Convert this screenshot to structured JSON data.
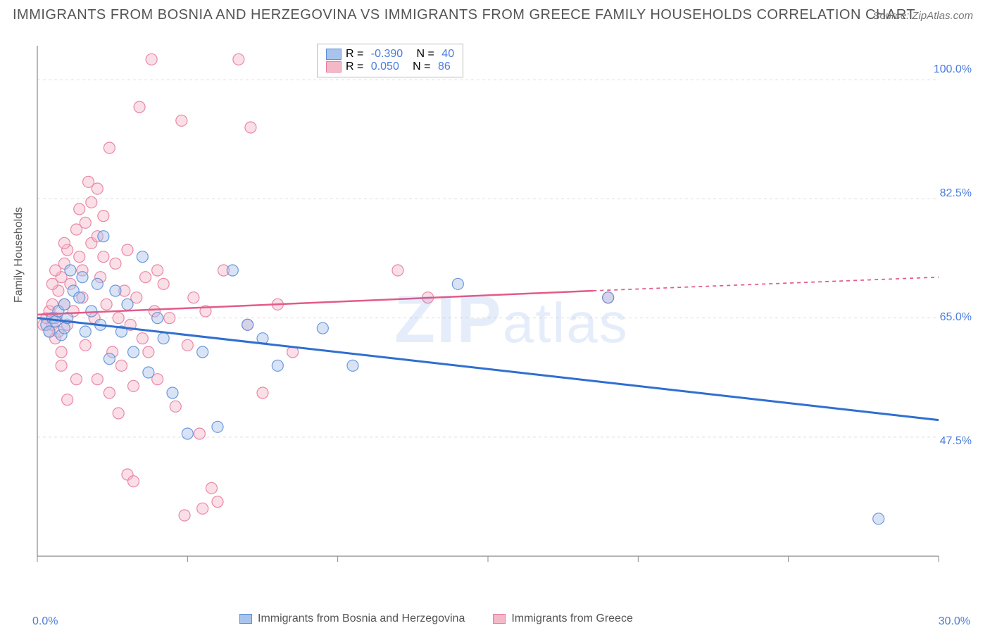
{
  "title": "IMMIGRANTS FROM BOSNIA AND HERZEGOVINA VS IMMIGRANTS FROM GREECE FAMILY HOUSEHOLDS CORRELATION CHART",
  "source": "Source: ZipAtlas.com",
  "ylabel": "Family Households",
  "watermark": "ZIPatlas",
  "chart": {
    "type": "scatter-with-regression",
    "background_color": "#ffffff",
    "grid_color": "#dddddd",
    "axis_color": "#888888",
    "tick_color": "#888888",
    "label_color": "#4a7cdc",
    "xlim": [
      0,
      30
    ],
    "ylim": [
      30,
      105
    ],
    "x_ticks": [
      0,
      5,
      10,
      15,
      20,
      25,
      30
    ],
    "x_tick_labels": {
      "0": "0.0%",
      "30": "30.0%"
    },
    "y_gridlines": [
      47.5,
      65.0,
      82.5,
      100.0
    ],
    "y_tick_labels": [
      "47.5%",
      "65.0%",
      "82.5%",
      "100.0%"
    ],
    "marker_radius": 8,
    "marker_opacity": 0.45,
    "marker_stroke_opacity": 0.9,
    "series": [
      {
        "id": "bosnia",
        "label": "Immigrants from Bosnia and Herzegovina",
        "color_fill": "#a9c4ec",
        "color_stroke": "#5b8fd8",
        "R": "-0.390",
        "N": "40",
        "regression": {
          "x1": 0,
          "y1": 65.0,
          "x2": 30,
          "y2": 50.0,
          "color": "#2f6fd0",
          "width": 3,
          "dash_from_x": 30
        },
        "points": [
          [
            0.3,
            64
          ],
          [
            0.4,
            63
          ],
          [
            0.5,
            65
          ],
          [
            0.6,
            64.5
          ],
          [
            0.7,
            66
          ],
          [
            0.8,
            62.5
          ],
          [
            0.9,
            63.5
          ],
          [
            1.0,
            65
          ],
          [
            1.1,
            72
          ],
          [
            1.2,
            69
          ],
          [
            1.4,
            68
          ],
          [
            1.6,
            63
          ],
          [
            1.8,
            66
          ],
          [
            2.0,
            70
          ],
          [
            2.2,
            77
          ],
          [
            2.4,
            59
          ],
          [
            2.6,
            69
          ],
          [
            2.8,
            63
          ],
          [
            3.0,
            67
          ],
          [
            3.2,
            60
          ],
          [
            3.5,
            74
          ],
          [
            3.7,
            57
          ],
          [
            4.0,
            65
          ],
          [
            4.2,
            62
          ],
          [
            4.5,
            54
          ],
          [
            5,
            48
          ],
          [
            5.5,
            60
          ],
          [
            6,
            49
          ],
          [
            6.5,
            72
          ],
          [
            7,
            64
          ],
          [
            7.5,
            62
          ],
          [
            8,
            58
          ],
          [
            9.5,
            63.5
          ],
          [
            10.5,
            58
          ],
          [
            14,
            70
          ],
          [
            19,
            68
          ],
          [
            28,
            35.5
          ],
          [
            1.5,
            71
          ],
          [
            0.9,
            67
          ],
          [
            2.1,
            64
          ]
        ]
      },
      {
        "id": "greece",
        "label": "Immigrants from Greece",
        "color_fill": "#f4b9c9",
        "color_stroke": "#e87b9e",
        "R": "0.050",
        "N": "86",
        "regression": {
          "x1": 0,
          "y1": 65.5,
          "x2": 18.5,
          "y2": 69.0,
          "x2_dash": 30,
          "y2_dash": 71.0,
          "color": "#e35b88",
          "width": 2.5,
          "dash_from_x": 18.5
        },
        "points": [
          [
            0.2,
            64
          ],
          [
            0.3,
            65
          ],
          [
            0.4,
            63
          ],
          [
            0.4,
            66
          ],
          [
            0.5,
            64
          ],
          [
            0.5,
            67
          ],
          [
            0.6,
            65
          ],
          [
            0.6,
            62
          ],
          [
            0.7,
            69
          ],
          [
            0.7,
            63
          ],
          [
            0.8,
            71
          ],
          [
            0.8,
            60
          ],
          [
            0.9,
            73
          ],
          [
            0.9,
            67
          ],
          [
            1.0,
            75
          ],
          [
            1.0,
            64
          ],
          [
            1.1,
            70
          ],
          [
            1.2,
            66
          ],
          [
            1.3,
            78
          ],
          [
            1.4,
            81
          ],
          [
            1.5,
            72
          ],
          [
            1.5,
            68
          ],
          [
            1.6,
            61
          ],
          [
            1.7,
            85
          ],
          [
            1.8,
            76
          ],
          [
            1.9,
            65
          ],
          [
            2.0,
            84
          ],
          [
            2.0,
            56
          ],
          [
            2.1,
            71
          ],
          [
            2.2,
            80
          ],
          [
            2.3,
            67
          ],
          [
            2.4,
            90
          ],
          [
            2.5,
            60
          ],
          [
            2.6,
            73
          ],
          [
            2.7,
            65
          ],
          [
            2.8,
            58
          ],
          [
            2.9,
            69
          ],
          [
            3.0,
            75
          ],
          [
            3.1,
            64
          ],
          [
            3.2,
            55
          ],
          [
            3.3,
            68
          ],
          [
            3.4,
            96
          ],
          [
            3.5,
            62
          ],
          [
            3.6,
            71
          ],
          [
            3.7,
            60
          ],
          [
            3.8,
            103
          ],
          [
            3.9,
            66
          ],
          [
            4.0,
            56
          ],
          [
            4.2,
            70
          ],
          [
            4.4,
            65
          ],
          [
            4.6,
            52
          ],
          [
            4.8,
            94
          ],
          [
            5.0,
            61
          ],
          [
            5.2,
            68
          ],
          [
            5.4,
            48
          ],
          [
            5.6,
            66
          ],
          [
            5.8,
            40
          ],
          [
            6.0,
            38
          ],
          [
            6.2,
            72
          ],
          [
            6.7,
            103
          ],
          [
            7.0,
            64
          ],
          [
            7.1,
            93
          ],
          [
            7.5,
            54
          ],
          [
            8.0,
            67
          ],
          [
            8.5,
            60
          ],
          [
            3.0,
            42
          ],
          [
            3.2,
            41
          ],
          [
            1.0,
            53
          ],
          [
            1.3,
            56
          ],
          [
            0.8,
            58
          ],
          [
            2.4,
            54
          ],
          [
            4.0,
            72
          ],
          [
            1.6,
            79
          ],
          [
            1.8,
            82
          ],
          [
            2.0,
            77
          ],
          [
            2.2,
            74
          ],
          [
            1.4,
            74
          ],
          [
            0.9,
            76
          ],
          [
            0.5,
            70
          ],
          [
            0.6,
            72
          ],
          [
            12,
            72
          ],
          [
            13,
            68
          ],
          [
            19,
            68
          ],
          [
            4.9,
            36
          ],
          [
            5.5,
            37
          ],
          [
            2.7,
            51
          ]
        ]
      }
    ]
  },
  "legend_top": [
    {
      "swatch": "bosnia",
      "r_label": "R = ",
      "r_val": "-0.390",
      "n_label": "   N = ",
      "n_val": "40"
    },
    {
      "swatch": "greece",
      "r_label": "R = ",
      "r_val": "0.050",
      "n_label": "   N = ",
      "n_val": "86"
    }
  ]
}
